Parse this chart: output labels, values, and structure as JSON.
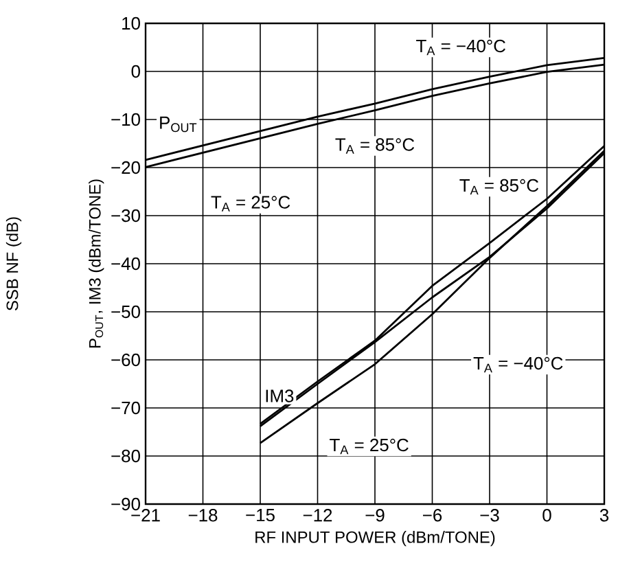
{
  "chart_data": {
    "type": "line",
    "xlabel": "RF INPUT POWER (dBm/TONE)",
    "ylabel": "P$_{OUT}$, IM3 (dBm/TONE)",
    "xlim": [
      -21,
      3
    ],
    "ylim": [
      -90,
      10
    ],
    "xticks": [
      {
        "value": -21,
        "label": "−21"
      },
      {
        "value": -18,
        "label": "−18"
      },
      {
        "value": -15,
        "label": "−15"
      },
      {
        "value": -12,
        "label": "−12"
      },
      {
        "value": -9,
        "label": "−9"
      },
      {
        "value": -6,
        "label": "−6"
      },
      {
        "value": -3,
        "label": "−3"
      },
      0,
      3
    ],
    "yticks": [
      {
        "value": -90,
        "label": "−90"
      },
      {
        "value": -80,
        "label": "−80"
      },
      {
        "value": -70,
        "label": "−70"
      },
      {
        "value": -60,
        "label": "−60"
      },
      {
        "value": -50,
        "label": "−50"
      },
      {
        "value": -40,
        "label": "−40"
      },
      {
        "value": -30,
        "label": "−30"
      },
      {
        "value": -20,
        "label": "−20"
      },
      {
        "value": -10,
        "label": "−10"
      },
      0,
      10
    ],
    "grid": true,
    "series": [
      {
        "color": "#000000",
        "x": [
          -21,
          -18,
          -15,
          -12,
          -9,
          -6,
          -3,
          0,
          3
        ],
        "values": [
          -18.4,
          -15.4,
          -12.4,
          -9.4,
          -6.7,
          -3.7,
          -1.1,
          1.3,
          2.8
        ]
      },
      {
        "color": "#000000",
        "x": [
          -21,
          -18,
          -15,
          -12,
          -9,
          -6,
          -3,
          0,
          3
        ],
        "values": [
          -19.9,
          -16.9,
          -13.9,
          -10.9,
          -8.1,
          -5.1,
          -2.5,
          -0.1,
          1.4
        ]
      },
      {
        "color": "#000000",
        "x": [
          -15,
          -12,
          -9,
          -6,
          -3,
          0,
          3
        ],
        "values": [
          -73.3,
          -64.5,
          -56,
          -44.6,
          -35.7,
          -26.5,
          -15.5
        ]
      },
      {
        "color": "#000000",
        "x": [
          -15,
          -12,
          -9,
          -6,
          -3,
          0,
          3
        ],
        "values": [
          -73.8,
          -65,
          -56.3,
          -47,
          -38.6,
          -28.5,
          -17
        ]
      },
      {
        "color": "#000000",
        "x": [
          -15,
          -12,
          -9,
          -6,
          -3,
          0,
          3
        ],
        "values": [
          -77.3,
          -69,
          -60.9,
          -50.5,
          -38.8,
          -28,
          -16.5
        ]
      }
    ],
    "annotations": [
      "T$_{A}$ = −40°C",
      "P$_{OUT}$",
      "T$_{A}$ = 85°C",
      "T$_{A}$ = 25°C",
      "T$_{A}$ = 85°C",
      "T$_{A}$ = −40°C",
      "IM3",
      "T$_{A}$ = 25°C",
      "SSB NF (dB)"
    ]
  }
}
